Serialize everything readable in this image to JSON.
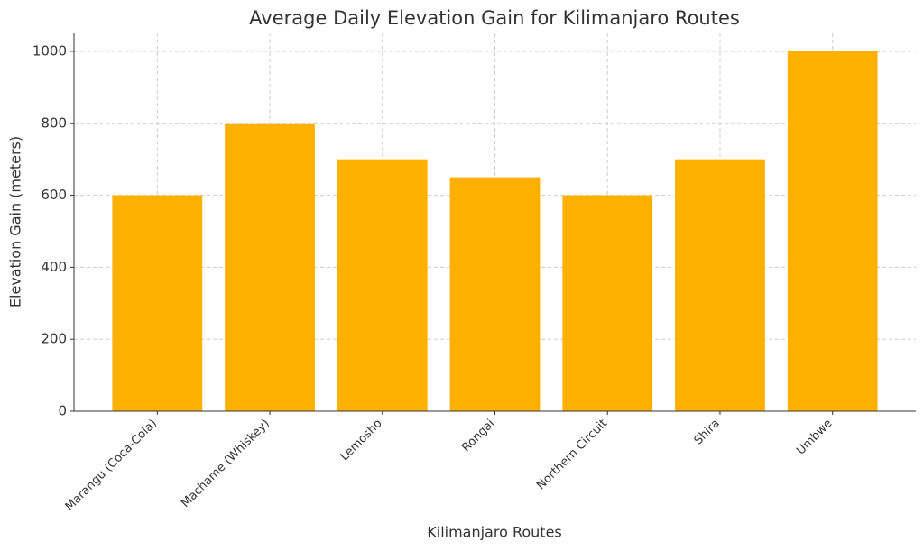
{
  "chart_data": {
    "type": "bar",
    "title": "Average Daily Elevation Gain for Kilimanjaro Routes",
    "x_label": "Kilimanjaro Routes",
    "y_label": "Elevation Gain (meters)",
    "categories": [
      "Marangu (Coca-Cola)",
      "Machame (Whiskey)",
      "Lemosho",
      "Rongai",
      "Northern Circuit",
      "Shira",
      "Umbwe"
    ],
    "values": [
      600,
      800,
      700,
      650,
      600,
      700,
      1000
    ],
    "color": "#ffb000",
    "ylim": [
      0,
      1050
    ],
    "yticks": [
      0,
      200,
      400,
      600,
      800,
      1000
    ],
    "grid": true
  }
}
